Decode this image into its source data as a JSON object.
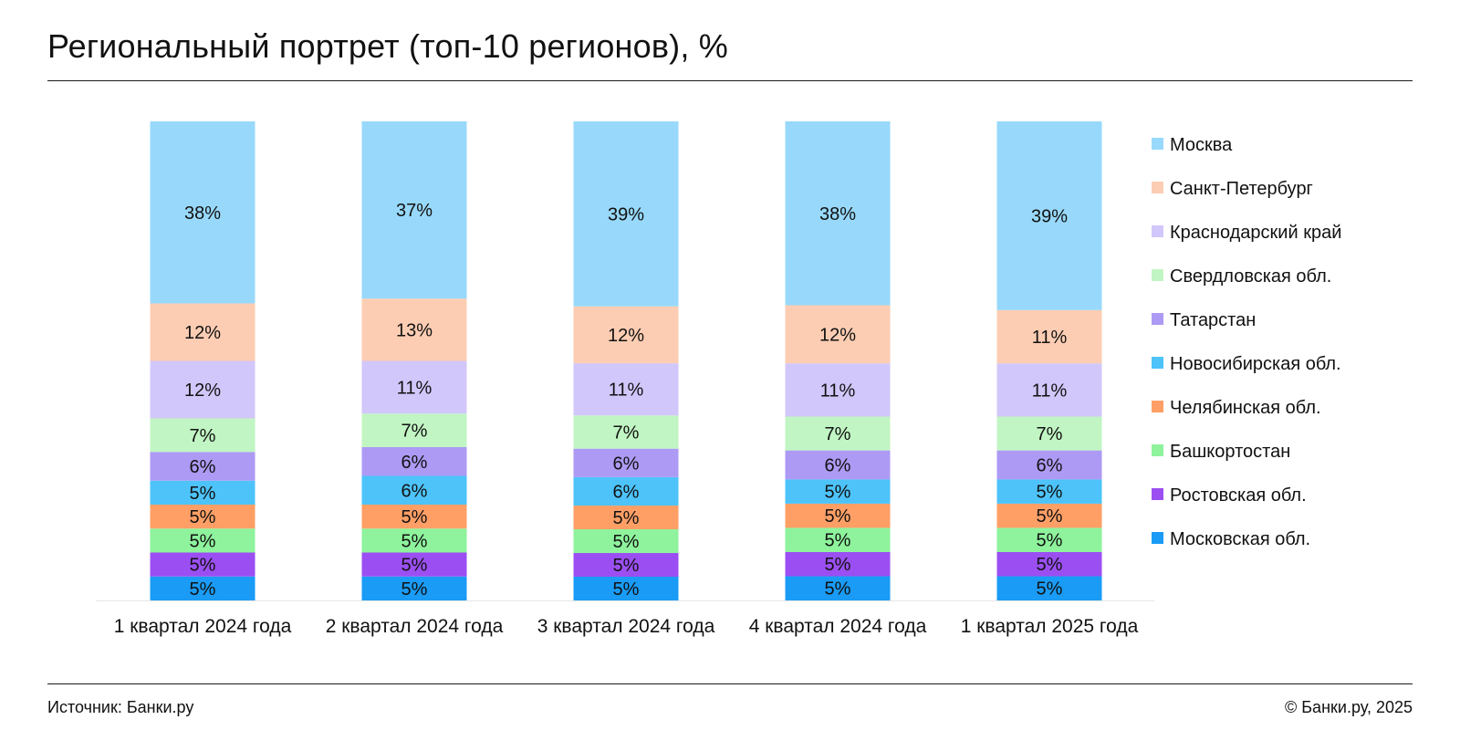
{
  "header": {
    "title": "Региональный портрет (топ-10 регионов), %"
  },
  "footer": {
    "source": "Источник: Банки.ру",
    "copyright": "© Банки.ру, 2025"
  },
  "chart_data": {
    "type": "bar",
    "stacked": true,
    "title": "Региональный портрет (топ-10 регионов), %",
    "categories": [
      "1 квартал 2024 года",
      "2 квартал 2024 года",
      "3 квартал 2024 года",
      "4 квартал 2024 года",
      "1 квартал 2025 года"
    ],
    "legend_position": "right",
    "grid": false,
    "series": [
      {
        "name": "Московская обл.",
        "color": "#1a9bf5",
        "values": [
          5,
          5,
          5,
          5,
          5
        ]
      },
      {
        "name": "Ростовская обл.",
        "color": "#9b4ff2",
        "values": [
          5,
          5,
          5,
          5,
          5
        ]
      },
      {
        "name": "Башкортостан",
        "color": "#8ef39c",
        "values": [
          5,
          5,
          5,
          5,
          5
        ]
      },
      {
        "name": "Челябинская обл.",
        "color": "#ff9f66",
        "values": [
          5,
          5,
          5,
          5,
          5
        ]
      },
      {
        "name": "Новосибирская обл.",
        "color": "#4dc3fa",
        "values": [
          5,
          6,
          6,
          5,
          5
        ]
      },
      {
        "name": "Татарстан",
        "color": "#ad9af4",
        "values": [
          6,
          6,
          6,
          6,
          6
        ]
      },
      {
        "name": "Свердловская обл.",
        "color": "#c1f5c3",
        "values": [
          7,
          7,
          7,
          7,
          7
        ]
      },
      {
        "name": "Краснодарский край",
        "color": "#d2c7fa",
        "values": [
          12,
          11,
          11,
          11,
          11
        ]
      },
      {
        "name": "Санкт-Петербург",
        "color": "#fdcdb3",
        "values": [
          12,
          13,
          12,
          12,
          11
        ]
      },
      {
        "name": "Москва",
        "color": "#98d9fb",
        "values": [
          38,
          37,
          39,
          38,
          39
        ]
      }
    ]
  }
}
